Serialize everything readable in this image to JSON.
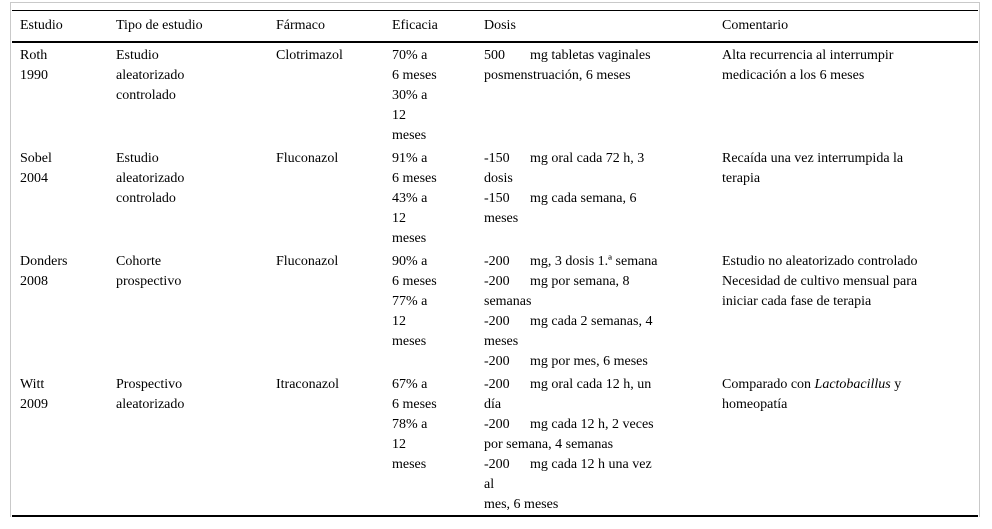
{
  "table": {
    "columns": [
      "Estudio",
      "Tipo de estudio",
      "Fármaco",
      "Eficacia",
      "Dosis",
      "Comentario"
    ],
    "rows": [
      {
        "estudio": [
          "Roth",
          "1990"
        ],
        "tipo_de_estudio": [
          "Estudio",
          "aleatorizado",
          "controlado"
        ],
        "farmaco": "Clotrimazol",
        "eficacia": [
          "70% a",
          "6 meses",
          "30% a",
          "12",
          "meses"
        ],
        "dosis": [
          {
            "dosis_mg": "500",
            "lines": [
              "mg tabletas vaginales",
              "posmenstruación, 6 meses"
            ]
          }
        ],
        "comentario": [
          "Alta recurrencia al interrumpir",
          "medicación a los 6 meses"
        ]
      },
      {
        "estudio": [
          "Sobel",
          "2004"
        ],
        "tipo_de_estudio": [
          "Estudio",
          "aleatorizado",
          "controlado"
        ],
        "farmaco": "Fluconazol",
        "eficacia": [
          "91% a",
          "6 meses",
          "43% a",
          "12",
          "meses"
        ],
        "dosis": [
          {
            "dosis_mg": "-150",
            "lines": [
              "mg oral cada 72 h, 3",
              "dosis"
            ]
          },
          {
            "dosis_mg": "-150",
            "lines": [
              "mg cada semana, 6",
              "meses"
            ]
          }
        ],
        "comentario": [
          "Recaída una vez interrumpida la",
          "terapia"
        ]
      },
      {
        "estudio": [
          "Donders",
          "2008"
        ],
        "tipo_de_estudio": [
          "Cohorte",
          "prospectivo"
        ],
        "farmaco": "Fluconazol",
        "eficacia": [
          "90% a",
          "6 meses",
          "77% a",
          "12",
          "meses"
        ],
        "dosis": [
          {
            "dosis_mg": "-200",
            "lines": [
              "mg, 3 dosis 1.ª semana"
            ]
          },
          {
            "dosis_mg": "-200",
            "lines": [
              "mg por semana, 8",
              "semanas"
            ]
          },
          {
            "dosis_mg": "-200",
            "lines": [
              "mg cada 2 semanas, 4",
              "meses"
            ]
          },
          {
            "dosis_mg": "-200",
            "lines": [
              "mg por mes, 6 meses"
            ]
          }
        ],
        "comentario": [
          "Estudio no aleatorizado controlado",
          "Necesidad de cultivo mensual para",
          "iniciar cada fase de terapia"
        ]
      },
      {
        "estudio": [
          "Witt",
          "2009"
        ],
        "tipo_de_estudio": [
          "Prospectivo",
          "aleatorizado"
        ],
        "farmaco": "Itraconazol",
        "eficacia": [
          "67% a",
          "6 meses",
          "78% a",
          "12",
          "meses"
        ],
        "dosis": [
          {
            "dosis_mg": "-200",
            "lines": [
              "mg oral cada 12 h, un",
              "día"
            ]
          },
          {
            "dosis_mg": "-200",
            "lines": [
              "mg cada 12 h, 2 veces",
              "por semana, 4 semanas"
            ]
          },
          {
            "dosis_mg": "-200",
            "lines": [
              "mg cada 12 h una vez",
              "al",
              "mes, 6 meses"
            ]
          }
        ],
        "comentario": [
          "Comparado con *Lactobacillus* y",
          "homeopatía"
        ]
      }
    ]
  },
  "colors": {
    "text": "#000000",
    "rule": "#000000",
    "frame_border": "#c9c9c9",
    "background": "#ffffff"
  }
}
